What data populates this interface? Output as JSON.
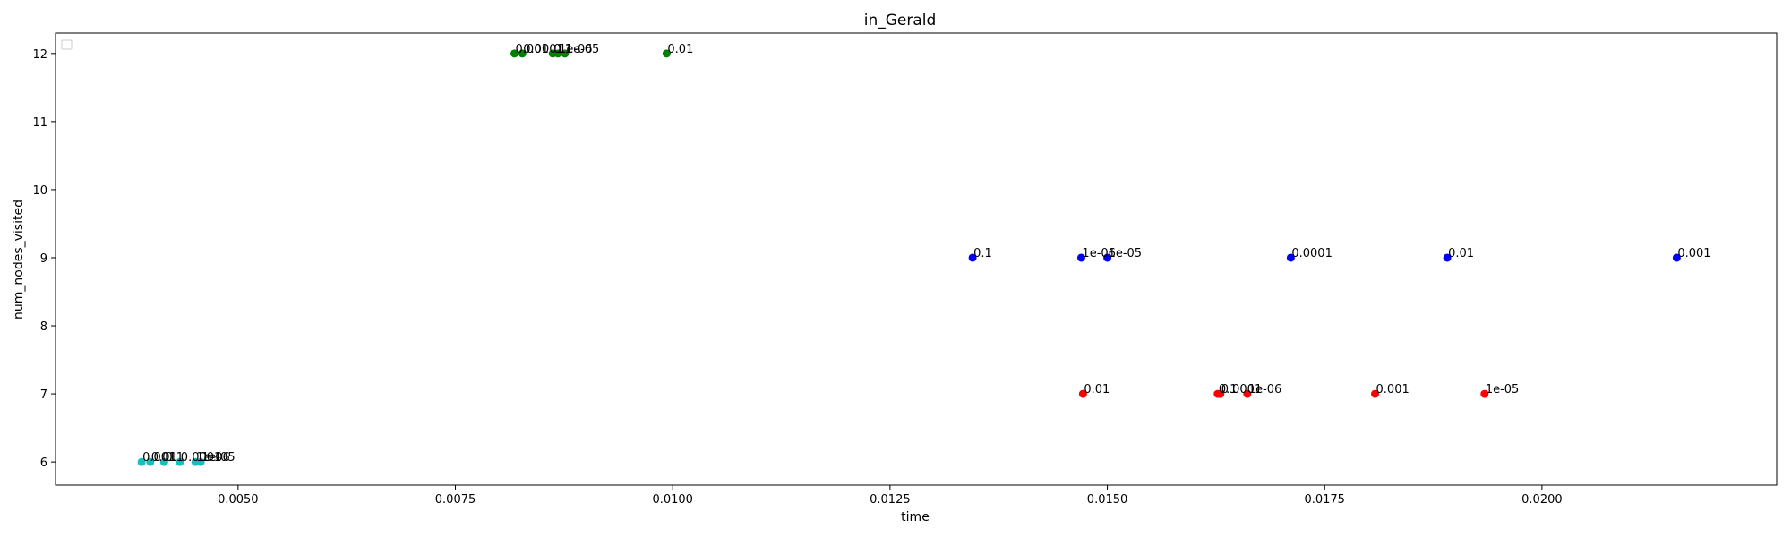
{
  "chart_data": {
    "type": "scatter",
    "title": "in_Gerald",
    "xlabel": "time",
    "ylabel": "num_nodes_visited",
    "xlim": [
      0.0029,
      0.0227
    ],
    "ylim": [
      5.66,
      12.3
    ],
    "grid": false,
    "legend": {
      "placement": "upper-left",
      "entries": []
    },
    "xticks": [
      {
        "value": 0.005,
        "label": "0.0050"
      },
      {
        "value": 0.0075,
        "label": "0.0075"
      },
      {
        "value": 0.01,
        "label": "0.0100"
      },
      {
        "value": 0.0125,
        "label": "0.0125"
      },
      {
        "value": 0.015,
        "label": "0.0150"
      },
      {
        "value": 0.0175,
        "label": "0.0175"
      },
      {
        "value": 0.02,
        "label": "0.0200"
      }
    ],
    "yticks": [
      {
        "value": 6,
        "label": "6"
      },
      {
        "value": 7,
        "label": "7"
      },
      {
        "value": 8,
        "label": "8"
      },
      {
        "value": 9,
        "label": "9"
      },
      {
        "value": 10,
        "label": "10"
      },
      {
        "value": 11,
        "label": "11"
      },
      {
        "value": 12,
        "label": "12"
      }
    ],
    "series": [
      {
        "color": "#17bfbf",
        "points": [
          {
            "x": 0.00389,
            "y": 6,
            "label": "0.001"
          },
          {
            "x": 0.00399,
            "y": 6,
            "label": "0.01"
          },
          {
            "x": 0.00415,
            "y": 6,
            "label": "0.1"
          },
          {
            "x": 0.00433,
            "y": 6,
            "label": "0.0001"
          },
          {
            "x": 0.00451,
            "y": 6,
            "label": "1e-06"
          },
          {
            "x": 0.00457,
            "y": 6,
            "label": "1e-05"
          }
        ]
      },
      {
        "color": "#008000",
        "points": [
          {
            "x": 0.00818,
            "y": 12,
            "label": "0.001"
          },
          {
            "x": 0.00827,
            "y": 12,
            "label": "0.0001"
          },
          {
            "x": 0.00862,
            "y": 12,
            "label": "0.1"
          },
          {
            "x": 0.00868,
            "y": 12,
            "label": "1e-06"
          },
          {
            "x": 0.00876,
            "y": 12,
            "label": "1e-05"
          },
          {
            "x": 0.00993,
            "y": 12,
            "label": "0.01"
          }
        ]
      },
      {
        "color": "#0000ff",
        "points": [
          {
            "x": 0.01345,
            "y": 9,
            "label": "0.1"
          },
          {
            "x": 0.0147,
            "y": 9,
            "label": "1e-06"
          },
          {
            "x": 0.015,
            "y": 9,
            "label": "1e-05"
          },
          {
            "x": 0.01711,
            "y": 9,
            "label": "0.0001"
          },
          {
            "x": 0.01891,
            "y": 9,
            "label": "0.01"
          },
          {
            "x": 0.02155,
            "y": 9,
            "label": "0.001"
          }
        ]
      },
      {
        "color": "#ff0000",
        "points": [
          {
            "x": 0.01472,
            "y": 7,
            "label": "0.01"
          },
          {
            "x": 0.01627,
            "y": 7,
            "label": "0.1"
          },
          {
            "x": 0.0163,
            "y": 7,
            "label": "0.0001"
          },
          {
            "x": 0.01661,
            "y": 7,
            "label": "1e-06"
          },
          {
            "x": 0.01808,
            "y": 7,
            "label": "0.001"
          },
          {
            "x": 0.01934,
            "y": 7,
            "label": "1e-05"
          }
        ]
      }
    ]
  }
}
